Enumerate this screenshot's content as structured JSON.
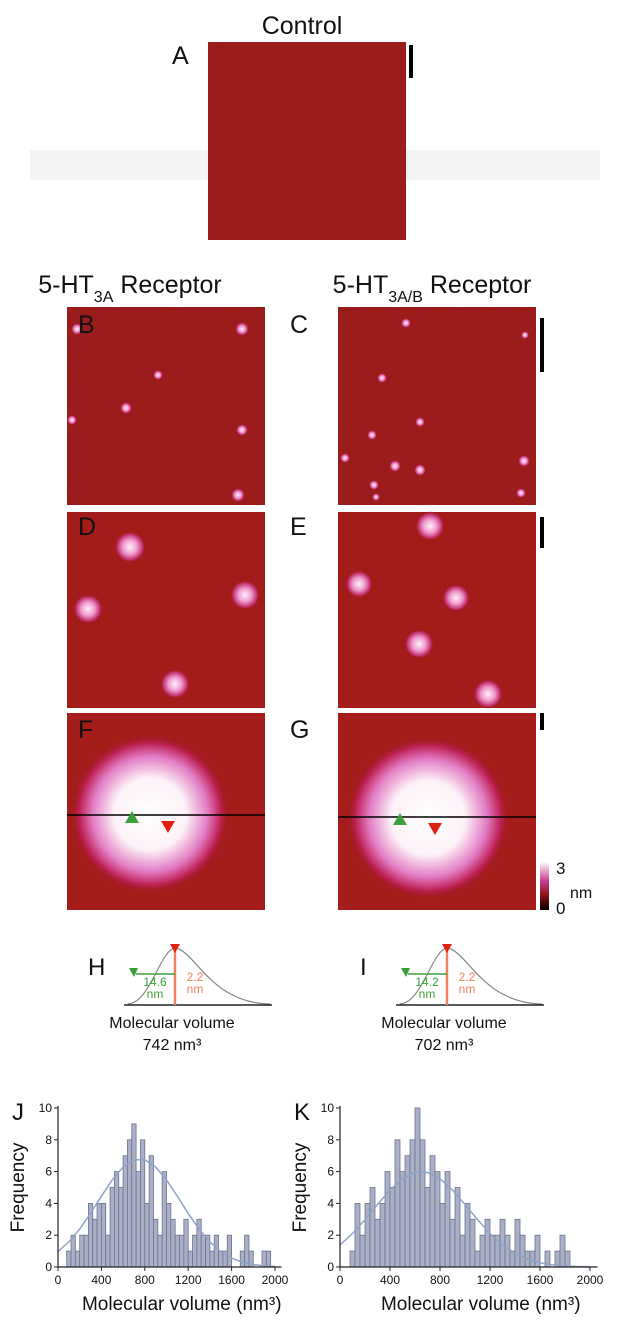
{
  "figure": {
    "control": {
      "title": "Control",
      "label": "A"
    },
    "columns": [
      {
        "main": "5-HT",
        "sub": "3A",
        "rest": " Receptor"
      },
      {
        "main": "5-HT",
        "sub": "3A/B",
        "rest": " Receptor"
      }
    ],
    "panel_labels": [
      "B",
      "C",
      "D",
      "E",
      "F",
      "G"
    ],
    "colorbar": {
      "ticks": [
        0,
        3
      ],
      "unit": "nm"
    },
    "profiles": [
      {
        "label": "H",
        "width": 14.6,
        "width_unit": "nm",
        "height": 2.2,
        "height_unit": "nm",
        "caption": "Molecular volume",
        "volume": "742 nm³"
      },
      {
        "label": "I",
        "width": 14.2,
        "width_unit": "nm",
        "height": 2.2,
        "height_unit": "nm",
        "caption": "Molecular volume",
        "volume": "702 nm³"
      }
    ]
  },
  "chart_data": [
    {
      "type": "histogram",
      "label": "J",
      "xlabel": "Molecular volume (nm³)",
      "ylabel": "Frequency",
      "color": "#aab0c6",
      "edge_color": "#6c7290",
      "bins": [
        80,
        120,
        160,
        200,
        240,
        280,
        320,
        360,
        400,
        440,
        480,
        520,
        560,
        600,
        640,
        680,
        720,
        760,
        800,
        840,
        880,
        920,
        960,
        1000,
        1040,
        1080,
        1120,
        1160,
        1200,
        1240,
        1280,
        1320,
        1360,
        1400,
        1440,
        1480,
        1520,
        1560,
        1600,
        1640,
        1680,
        1720,
        1760,
        1800,
        1840,
        1880,
        1920,
        1960,
        2000
      ],
      "values": [
        1,
        2,
        1,
        2,
        2,
        4,
        3,
        4,
        4,
        2,
        5,
        6,
        5,
        7,
        8,
        9,
        6,
        8,
        4,
        7,
        3,
        2,
        6,
        4,
        3,
        2,
        2,
        3,
        1,
        2,
        3,
        2,
        2,
        1,
        2,
        1,
        1,
        2,
        0,
        0,
        1,
        2,
        1,
        0,
        0,
        1,
        1,
        0
      ],
      "fit": {
        "color": "#8fa4c8",
        "x": [
          0,
          100,
          200,
          300,
          400,
          500,
          600,
          700,
          800,
          900,
          1000,
          1100,
          1200,
          1300,
          1400,
          1500,
          1600,
          1700,
          1800,
          1900,
          2000
        ],
        "values": [
          0.97,
          1.58,
          2.39,
          3.37,
          4.45,
          5.48,
          6.29,
          6.74,
          6.74,
          6.29,
          5.48,
          4.45,
          3.37,
          2.39,
          1.58,
          0.97,
          0.56,
          0.3,
          0.15,
          0.07,
          0.03
        ]
      },
      "xlim": [
        0,
        2060
      ],
      "ylim": [
        0,
        10
      ],
      "xticks": [
        0,
        400,
        800,
        1200,
        1600,
        2000
      ],
      "yticks": [
        0,
        2,
        4,
        6,
        8,
        10
      ]
    },
    {
      "type": "histogram",
      "label": "K",
      "xlabel": "Molecular volume (nm³)",
      "ylabel": "Frequency",
      "color": "#aab0c6",
      "edge_color": "#6c7290",
      "bins": [
        80,
        120,
        160,
        200,
        240,
        280,
        320,
        360,
        400,
        440,
        480,
        520,
        560,
        600,
        640,
        680,
        720,
        760,
        800,
        840,
        880,
        920,
        960,
        1000,
        1040,
        1080,
        1120,
        1160,
        1200,
        1240,
        1280,
        1320,
        1360,
        1400,
        1440,
        1480,
        1520,
        1560,
        1600,
        1640,
        1680,
        1720,
        1760,
        1800,
        1840
      ],
      "values": [
        1,
        4,
        2,
        4,
        5,
        3,
        4,
        6,
        5,
        8,
        6,
        7,
        8,
        10,
        8,
        5,
        7,
        6,
        4,
        6,
        3,
        5,
        2,
        4,
        3,
        1,
        2,
        3,
        2,
        2,
        3,
        2,
        1,
        3,
        2,
        1,
        1,
        2,
        0,
        1,
        0,
        1,
        2,
        1
      ],
      "fit": {
        "color": "#8fa4c8",
        "x": [
          0,
          100,
          200,
          300,
          400,
          500,
          600,
          700,
          800,
          900,
          1000,
          1100,
          1200,
          1300,
          1400,
          1500,
          1600,
          1700,
          1800,
          1900,
          2000
        ],
        "values": [
          1.39,
          2.11,
          2.98,
          3.93,
          4.84,
          5.55,
          5.95,
          5.95,
          5.55,
          4.84,
          3.93,
          2.98,
          2.11,
          1.39,
          0.86,
          0.49,
          0.26,
          0.13,
          0.06,
          0.03,
          0.01
        ]
      },
      "xlim": [
        0,
        2060
      ],
      "ylim": [
        0,
        10
      ],
      "xticks": [
        0,
        400,
        800,
        1200,
        1600,
        2000
      ],
      "yticks": [
        0,
        2,
        4,
        6,
        8,
        10
      ]
    }
  ]
}
